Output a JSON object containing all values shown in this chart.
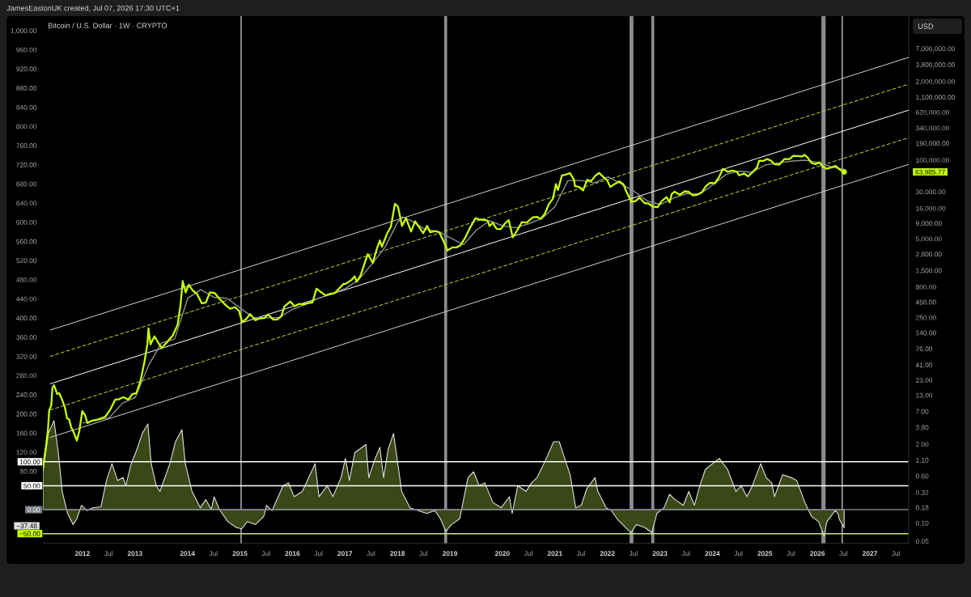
{
  "chart_data": {
    "type": "line",
    "title": "Bitcoin / U.S. Dollar · 1W · CRYPTO",
    "annotations": [
      "JamesEastonUK created, Jul 07, 2026 17:30 UTC+1"
    ],
    "y2label": "USD",
    "log": "y2",
    "xlim": [
      "2011-04-01",
      "2027-09-28"
    ],
    "ylim": [
      -70,
      1030
    ],
    "y2lim": [
      0.0463,
      24000000
    ],
    "xticks": [
      {
        "value": "2012-01-01",
        "label": "2012"
      },
      {
        "value": "2012-07-01",
        "label": "Jul"
      },
      {
        "value": "2013-01-01",
        "label": "2013"
      },
      {
        "value": "2014-01-01",
        "label": "2014"
      },
      {
        "value": "2014-07-01",
        "label": "Jul"
      },
      {
        "value": "2015-01-01",
        "label": "2015"
      },
      {
        "value": "2015-07-01",
        "label": "Jul"
      },
      {
        "value": "2016-01-01",
        "label": "2016"
      },
      {
        "value": "2016-07-01",
        "label": "Jul"
      },
      {
        "value": "2017-01-01",
        "label": "2017"
      },
      {
        "value": "2017-07-01",
        "label": "Jul"
      },
      {
        "value": "2018-01-01",
        "label": "2018"
      },
      {
        "value": "2018-07-01",
        "label": "Jul"
      },
      {
        "value": "2019-01-01",
        "label": "2019"
      },
      {
        "value": "2020-01-01",
        "label": "2020"
      },
      {
        "value": "2020-07-01",
        "label": "Jul"
      },
      {
        "value": "2021-01-01",
        "label": "2021"
      },
      {
        "value": "2021-07-01",
        "label": "Jul"
      },
      {
        "value": "2022-01-01",
        "label": "2022"
      },
      {
        "value": "2022-07-01",
        "label": "Jul"
      },
      {
        "value": "2023-01-01",
        "label": "2023"
      },
      {
        "value": "2023-07-01",
        "label": "Jul"
      },
      {
        "value": "2024-01-01",
        "label": "2024"
      },
      {
        "value": "2024-07-01",
        "label": "Jul"
      },
      {
        "value": "2025-01-01",
        "label": "2025"
      },
      {
        "value": "2025-07-01",
        "label": "Jul"
      },
      {
        "value": "2026-01-01",
        "label": "2026"
      },
      {
        "value": "2026-07-01",
        "label": "Jul"
      },
      {
        "value": "2027-01-01",
        "label": "2027"
      },
      {
        "value": "2027-07-01",
        "label": "Jul"
      }
    ],
    "yticks": [
      {
        "value": 1000,
        "label": "1,000.00"
      },
      {
        "value": 960,
        "label": "960.00"
      },
      {
        "value": 920,
        "label": "920.00"
      },
      {
        "value": 880,
        "label": "880.00"
      },
      {
        "value": 840,
        "label": "840.00"
      },
      {
        "value": 800,
        "label": "800.00"
      },
      {
        "value": 760,
        "label": "760.00"
      },
      {
        "value": 720,
        "label": "720.00"
      },
      {
        "value": 680,
        "label": "680.00"
      },
      {
        "value": 640,
        "label": "640.00"
      },
      {
        "value": 600,
        "label": "600.00"
      },
      {
        "value": 560,
        "label": "560.00"
      },
      {
        "value": 520,
        "label": "520.00"
      },
      {
        "value": 480,
        "label": "480.00"
      },
      {
        "value": 440,
        "label": "440.00"
      },
      {
        "value": 400,
        "label": "400.00"
      },
      {
        "value": 360,
        "label": "360.00"
      },
      {
        "value": 320,
        "label": "320.00"
      },
      {
        "value": 280,
        "label": "280.00"
      },
      {
        "value": 240,
        "label": "240.00"
      },
      {
        "value": 200,
        "label": "200.00"
      },
      {
        "value": 160,
        "label": "160.00"
      },
      {
        "value": 120,
        "label": "120.00"
      },
      {
        "value": 80,
        "label": "80.00"
      },
      {
        "value": -37.48,
        "label": "−37.48"
      }
    ],
    "y2ticks": [
      {
        "value": 7000000,
        "label": "7,000,000.00"
      },
      {
        "value": 3800000,
        "label": "3,800,000.00"
      },
      {
        "value": 2000000,
        "label": "2,000,000.00"
      },
      {
        "value": 1100000,
        "label": "1,100,000.00"
      },
      {
        "value": 620000,
        "label": "620,000.00"
      },
      {
        "value": 340000,
        "label": "340,000.00"
      },
      {
        "value": 190000,
        "label": "190,000.00"
      },
      {
        "value": 100000,
        "label": "100,000.00"
      },
      {
        "value": 63985.77,
        "label": "63,985.77"
      },
      {
        "value": 30000,
        "label": "30,000.00"
      },
      {
        "value": 16000,
        "label": "16,000.00"
      },
      {
        "value": 9000,
        "label": "9,000.00"
      },
      {
        "value": 5000,
        "label": "5,000.00"
      },
      {
        "value": 2800,
        "label": "2,800.00"
      },
      {
        "value": 1500,
        "label": "1,500.00"
      },
      {
        "value": 800,
        "label": "800.00"
      },
      {
        "value": 450,
        "label": "450.00"
      },
      {
        "value": 250,
        "label": "250.00"
      },
      {
        "value": 140,
        "label": "140.00"
      },
      {
        "value": 76,
        "label": "76.00"
      },
      {
        "value": 41,
        "label": "41.00"
      },
      {
        "value": 23,
        "label": "23.00"
      },
      {
        "value": 13,
        "label": "13.00"
      },
      {
        "value": 7,
        "label": "7.00"
      },
      {
        "value": 3.8,
        "label": "3.80"
      },
      {
        "value": 2,
        "label": "2.00"
      },
      {
        "value": 1.1,
        "label": "1.10"
      },
      {
        "value": 0.6,
        "label": "0.60"
      },
      {
        "value": 0.32,
        "label": "0.32"
      },
      {
        "value": 0.18,
        "label": "0.18"
      },
      {
        "value": 0.1,
        "label": "0.10"
      },
      {
        "value": 0.05,
        "label": "0.05"
      }
    ],
    "series": [
      {
        "axis": "y2",
        "color": "#c6ff00",
        "x": [
          "2011-04-01",
          "2011-04-22",
          "2011-05-06",
          "2011-05-15",
          "2011-05-29",
          "2011-06-06",
          "2011-06-17",
          "2011-06-25",
          "2011-07-09",
          "2011-07-23",
          "2011-08-12",
          "2011-08-31",
          "2011-09-16",
          "2011-09-30",
          "2011-10-15",
          "2011-10-29",
          "2011-11-12",
          "2011-11-23",
          "2011-12-10",
          "2011-12-31",
          "2012-01-19",
          "2012-02-05",
          "2012-03-04",
          "2012-04-12",
          "2012-06-08",
          "2012-07-13",
          "2012-08-17",
          "2012-09-07",
          "2012-10-12",
          "2012-11-16",
          "2012-12-14",
          "2013-01-11",
          "2013-02-08",
          "2013-03-08",
          "2013-03-29",
          "2013-04-05",
          "2013-04-19",
          "2013-05-17",
          "2013-07-05",
          "2013-08-16",
          "2013-09-20",
          "2013-10-25",
          "2013-11-15",
          "2013-11-29",
          "2013-12-20",
          "2014-01-10",
          "2014-02-07",
          "2014-03-07",
          "2014-04-11",
          "2014-05-09",
          "2014-06-06",
          "2014-07-11",
          "2014-08-15",
          "2014-09-19",
          "2014-10-24",
          "2014-11-28",
          "2014-12-26",
          "2015-01-16",
          "2015-02-13",
          "2015-03-13",
          "2015-04-17",
          "2015-05-15",
          "2015-06-19",
          "2015-07-17",
          "2015-08-21",
          "2015-09-18",
          "2015-10-16",
          "2015-11-06",
          "2015-12-18",
          "2016-01-15",
          "2016-02-19",
          "2016-03-18",
          "2016-04-15",
          "2016-05-20",
          "2016-06-17",
          "2016-07-15",
          "2016-08-19",
          "2016-09-16",
          "2016-10-21",
          "2016-11-18",
          "2016-12-23",
          "2017-01-06",
          "2017-02-17",
          "2017-03-10",
          "2017-03-24",
          "2017-04-21",
          "2017-05-19",
          "2017-06-09",
          "2017-07-14",
          "2017-08-11",
          "2017-09-01",
          "2017-09-15",
          "2017-10-20",
          "2017-11-17",
          "2017-12-15",
          "2018-01-05",
          "2018-02-02",
          "2018-03-02",
          "2018-04-06",
          "2018-05-04",
          "2018-06-29",
          "2018-07-27",
          "2018-08-17",
          "2018-09-21",
          "2018-10-19",
          "2018-11-23",
          "2018-12-14",
          "2019-01-18",
          "2019-02-15",
          "2019-03-15",
          "2019-04-19",
          "2019-05-17",
          "2019-06-28",
          "2019-07-19",
          "2019-08-16",
          "2019-09-20",
          "2019-10-04",
          "2019-10-25",
          "2019-11-22",
          "2019-12-20",
          "2020-01-17",
          "2020-02-14",
          "2020-03-13",
          "2020-04-17",
          "2020-05-15",
          "2020-06-19",
          "2020-07-31",
          "2020-08-28",
          "2020-09-25",
          "2020-10-23",
          "2020-11-20",
          "2020-12-18",
          "2021-01-08",
          "2021-01-22",
          "2021-02-19",
          "2021-03-12",
          "2021-04-16",
          "2021-05-14",
          "2021-05-21",
          "2021-06-18",
          "2021-07-16",
          "2021-08-13",
          "2021-09-10",
          "2021-10-08",
          "2021-11-05",
          "2021-12-03",
          "2021-12-31",
          "2022-01-21",
          "2022-02-18",
          "2022-03-25",
          "2022-04-22",
          "2022-05-13",
          "2022-06-17",
          "2022-07-15",
          "2022-08-12",
          "2022-09-16",
          "2022-10-14",
          "2022-11-11",
          "2022-12-16",
          "2023-01-13",
          "2023-02-17",
          "2023-03-10",
          "2023-03-24",
          "2023-04-14",
          "2023-05-19",
          "2023-06-23",
          "2023-07-21",
          "2023-08-18",
          "2023-09-15",
          "2023-10-20",
          "2023-11-17",
          "2023-12-15",
          "2024-01-19",
          "2024-02-16",
          "2024-03-15",
          "2024-04-19",
          "2024-05-17",
          "2024-06-21",
          "2024-07-05",
          "2024-08-09",
          "2024-09-06",
          "2024-10-04",
          "2024-11-08",
          "2024-11-22",
          "2024-12-20",
          "2025-01-17",
          "2025-02-14",
          "2025-03-07",
          "2025-04-11",
          "2025-05-16",
          "2025-06-20",
          "2025-07-18",
          "2025-08-15",
          "2025-09-19",
          "2025-10-03",
          "2025-10-24",
          "2025-11-21",
          "2025-12-19",
          "2026-01-16",
          "2026-02-06",
          "2026-03-06",
          "2026-04-10",
          "2026-05-08",
          "2026-06-05",
          "2026-07-06"
        ],
        "values": [
          0.82,
          1.8,
          3.4,
          7.3,
          8.8,
          17,
          19,
          17,
          13.6,
          14,
          11,
          8.3,
          5.4,
          5.2,
          3.8,
          3.3,
          2.7,
          2.3,
          3.3,
          7.1,
          6.1,
          4.5,
          4.9,
          5.1,
          5.7,
          7.5,
          11,
          11,
          12,
          11,
          13.5,
          14,
          22,
          46,
          92,
          165,
          90,
          122,
          78,
          100,
          125,
          190,
          420,
          1000,
          650,
          870,
          700,
          620,
          430,
          440,
          650,
          630,
          500,
          410,
          350,
          370,
          320,
          210,
          235,
          285,
          225,
          240,
          245,
          280,
          230,
          232,
          262,
          380,
          460,
          385,
          420,
          410,
          430,
          445,
          750,
          665,
          580,
          610,
          630,
          740,
          900,
          900,
          1050,
          1200,
          970,
          1250,
          2000,
          2800,
          2000,
          3400,
          4700,
          3700,
          6000,
          8000,
          19000,
          17000,
          8200,
          11000,
          6600,
          9700,
          6200,
          8200,
          6400,
          6700,
          6400,
          4300,
          3200,
          3600,
          3600,
          3900,
          5300,
          7300,
          11000,
          10500,
          10300,
          10000,
          8100,
          9200,
          7300,
          7200,
          8900,
          10200,
          5300,
          7100,
          9400,
          9300,
          11300,
          11500,
          10700,
          13000,
          18700,
          23000,
          40000,
          32000,
          56000,
          57000,
          61000,
          47000,
          37000,
          36000,
          31500,
          47000,
          45000,
          55000,
          61500,
          53000,
          46000,
          36000,
          40000,
          44500,
          40000,
          30000,
          20500,
          21000,
          24000,
          19500,
          19200,
          17000,
          16700,
          21000,
          24500,
          20000,
          27500,
          30000,
          26800,
          30500,
          29800,
          26000,
          26600,
          29500,
          37000,
          42000,
          41500,
          52000,
          72000,
          64000,
          67000,
          64000,
          56000,
          60000,
          54000,
          62000,
          76000,
          98000,
          97000,
          104000,
          97500,
          86000,
          84000,
          104000,
          104000,
          118000,
          117000,
          115000,
          122000,
          111000,
          90000,
          86000,
          92000,
          78000,
          72000,
          76000,
          80000,
          70000,
          63985.77
        ]
      },
      {
        "axis": "y2",
        "color": "#8f8f8f",
        "x": [
          "2012-01-06",
          "2012-04-06",
          "2012-07-06",
          "2012-10-05",
          "2013-01-04",
          "2013-04-05",
          "2013-07-05",
          "2013-10-04",
          "2014-01-03",
          "2014-04-04",
          "2014-07-04",
          "2014-10-03",
          "2015-01-02",
          "2015-04-03",
          "2015-07-03",
          "2015-10-02",
          "2016-01-01",
          "2016-04-01",
          "2016-07-01",
          "2016-10-07",
          "2017-01-06",
          "2017-04-07",
          "2017-07-07",
          "2017-10-06",
          "2017-12-29",
          "2018-02-02",
          "2018-04-06",
          "2018-07-06",
          "2018-10-05",
          "2019-01-04",
          "2019-04-05",
          "2019-07-05",
          "2019-10-04",
          "2020-01-03",
          "2020-04-03",
          "2020-07-03",
          "2020-10-02",
          "2021-01-01",
          "2021-04-02",
          "2021-07-02",
          "2021-10-01",
          "2022-01-07",
          "2022-04-01",
          "2022-07-01",
          "2022-10-07",
          "2023-01-06",
          "2023-04-07",
          "2023-07-07",
          "2023-10-06",
          "2024-01-05",
          "2024-04-05",
          "2024-07-05",
          "2024-10-04",
          "2025-01-03",
          "2025-04-04",
          "2025-07-04",
          "2025-10-03",
          "2026-01-02",
          "2026-04-03",
          "2026-07-06"
        ],
        "values": [
          4.5,
          5.0,
          5.5,
          9.5,
          12,
          40,
          95,
          110,
          520,
          720,
          540,
          520,
          360,
          250,
          245,
          250,
          340,
          410,
          520,
          620,
          760,
          1050,
          1900,
          3600,
          9000,
          11500,
          10000,
          7300,
          6600,
          5200,
          4000,
          7000,
          9900,
          8200,
          7600,
          8900,
          10800,
          17000,
          46000,
          46000,
          42000,
          53000,
          41000,
          31000,
          21000,
          18500,
          23500,
          28000,
          27500,
          39000,
          58000,
          66000,
          63000,
          83000,
          90000,
          96000,
          100000,
          92000,
          78000,
          70000
        ]
      },
      {
        "axis": "y2",
        "color": "#cfcfcf",
        "line_style": "solid",
        "x": [
          "2011-05-22",
          "2027-09-28"
        ],
        "values": [
          155,
          5000000
        ]
      },
      {
        "axis": "y2",
        "color": "#c2d930",
        "line_style": "dashed",
        "x": [
          "2011-05-22",
          "2027-09-28"
        ],
        "values": [
          57,
          1800000
        ]
      },
      {
        "axis": "y2",
        "color": "#ffffff",
        "line_style": "solid",
        "x": [
          "2011-05-22",
          "2027-09-28"
        ],
        "values": [
          20,
          670000
        ]
      },
      {
        "axis": "y2",
        "color": "#c2d930",
        "line_style": "dashed",
        "x": [
          "2011-05-22",
          "2027-09-28"
        ],
        "values": [
          7.4,
          235000
        ]
      },
      {
        "axis": "y2",
        "color": "#cfcfcf",
        "line_style": "solid",
        "x": [
          "2011-05-22",
          "2027-09-28"
        ],
        "values": [
          2.6,
          85000
        ]
      },
      {
        "type": "area",
        "axis": "y",
        "color": "#3a4716",
        "x": [
          "2011-04-01",
          "2011-05-10",
          "2011-06-17",
          "2011-07-17",
          "2011-08-13",
          "2011-09-20",
          "2011-10-28",
          "2011-11-24",
          "2011-12-25",
          "2012-02-02",
          "2012-03-12",
          "2012-05-09",
          "2012-06-17",
          "2012-07-25",
          "2012-09-02",
          "2012-10-10",
          "2012-10-29",
          "2012-12-06",
          "2013-01-14",
          "2013-02-21",
          "2013-04-01",
          "2013-04-24",
          "2013-05-29",
          "2013-06-24",
          "2013-09-01",
          "2013-10-10",
          "2013-11-24",
          "2013-12-17",
          "2014-02-02",
          "2014-04-01",
          "2014-05-09",
          "2014-06-16",
          "2014-07-05",
          "2014-08-12",
          "2014-10-09",
          "2014-12-06",
          "2015-01-13",
          "2015-02-21",
          "2015-04-19",
          "2015-06-16",
          "2015-07-05",
          "2015-08-12",
          "2015-10-28",
          "2015-12-05",
          "2016-01-13",
          "2016-03-10",
          "2016-06-07",
          "2016-07-04",
          "2016-08-31",
          "2016-10-09",
          "2016-12-05",
          "2017-01-05",
          "2017-02-01",
          "2017-03-11",
          "2017-05-27",
          "2017-06-16",
          "2017-07-24",
          "2017-09-01",
          "2017-09-27",
          "2017-10-28",
          "2017-12-05",
          "2017-12-24",
          "2018-01-31",
          "2018-03-30",
          "2018-05-27",
          "2018-07-23",
          "2018-09-19",
          "2018-10-27",
          "2018-12-04",
          "2019-01-12",
          "2019-03-10",
          "2019-05-07",
          "2019-06-15",
          "2019-07-23",
          "2019-08-31",
          "2019-10-27",
          "2019-12-24",
          "2020-02-19",
          "2020-03-09",
          "2020-04-17",
          "2020-06-14",
          "2020-07-22",
          "2020-08-30",
          "2020-10-26",
          "2020-12-23",
          "2021-01-31",
          "2021-03-10",
          "2021-04-17",
          "2021-05-26",
          "2021-07-03",
          "2021-08-11",
          "2021-10-07",
          "2021-10-27",
          "2021-12-23",
          "2022-01-30",
          "2022-03-09",
          "2022-05-06",
          "2022-06-13",
          "2022-07-22",
          "2022-09-17",
          "2022-11-06",
          "2022-12-11",
          "2023-01-30",
          "2023-03-09",
          "2023-04-17",
          "2023-06-13",
          "2023-07-21",
          "2023-08-29",
          "2023-10-06",
          "2023-11-13",
          "2024-02-18",
          "2024-04-16",
          "2024-06-13",
          "2024-07-21",
          "2024-08-29",
          "2024-10-06",
          "2024-12-03",
          "2025-01-10",
          "2025-02-18",
          "2025-03-09",
          "2025-05-05",
          "2025-07-02",
          "2025-08-10",
          "2025-10-06",
          "2025-11-21",
          "2026-01-10",
          "2026-02-17",
          "2026-03-08",
          "2026-05-05",
          "2026-05-24",
          "2026-06-03",
          "2026-07-06"
        ],
        "values": [
          78,
          160,
          186,
          120,
          38,
          -8,
          -31,
          -19,
          9,
          -2,
          4,
          6,
          61,
          96,
          61,
          67,
          50,
          96,
          125,
          159,
          179,
          96,
          50,
          38,
          96,
          142,
          167,
          96,
          38,
          4,
          21,
          0,
          27,
          0,
          -25,
          -37,
          -40,
          -25,
          -31,
          -14,
          9,
          -2,
          50,
          56,
          27,
          38,
          96,
          27,
          50,
          27,
          67,
          107,
          61,
          119,
          136,
          67,
          102,
          130,
          67,
          125,
          159,
          119,
          38,
          4,
          -2,
          -8,
          -2,
          -19,
          -45,
          -31,
          -19,
          67,
          79,
          50,
          56,
          15,
          4,
          27,
          -8,
          50,
          38,
          56,
          67,
          102,
          142,
          142,
          107,
          73,
          4,
          9,
          44,
          67,
          38,
          4,
          -2,
          -19,
          -37,
          -48,
          -31,
          -37,
          -48,
          -8,
          4,
          32,
          21,
          9,
          38,
          9,
          50,
          84,
          107,
          84,
          38,
          50,
          27,
          50,
          96,
          67,
          56,
          27,
          73,
          67,
          61,
          15,
          -14,
          -25,
          -54,
          -25,
          -2,
          -8,
          -20,
          -37.48
        ]
      },
      {
        "type": "scatter",
        "axis": "y2",
        "color": "#c6ff00",
        "marker": "circle",
        "x": [
          "2026-07-06"
        ],
        "values": [
          63985.77
        ]
      }
    ],
    "ref_lines": [
      {
        "axis": "y",
        "value": 100,
        "label": "100.00",
        "color": "#ffffff"
      },
      {
        "axis": "y",
        "value": 50,
        "label": "50.00",
        "color": "#ffffff"
      },
      {
        "axis": "y",
        "value": 0,
        "label": "0.00",
        "color": "#787b86"
      },
      {
        "axis": "y",
        "value": -50,
        "label": "−50.00",
        "color": "#c6ff00"
      },
      {
        "axis": "x",
        "value": "2015-01-09",
        "color": "#a6a6a6"
      },
      {
        "axis": "x",
        "value": "2026-06-23",
        "color": "#a6a6a6"
      }
    ],
    "bands": [
      {
        "axis": "x",
        "from": "2018-11-22",
        "to": "2018-12-13",
        "color": "#8c8c8c"
      },
      {
        "axis": "x",
        "from": "2022-06-04",
        "to": "2022-07-01",
        "color": "#8c8c8c"
      },
      {
        "axis": "x",
        "from": "2022-11-02",
        "to": "2022-11-23",
        "color": "#8c8c8c"
      },
      {
        "axis": "x",
        "from": "2026-01-29",
        "to": "2026-02-27",
        "color": "#8c8c8c"
      }
    ]
  }
}
